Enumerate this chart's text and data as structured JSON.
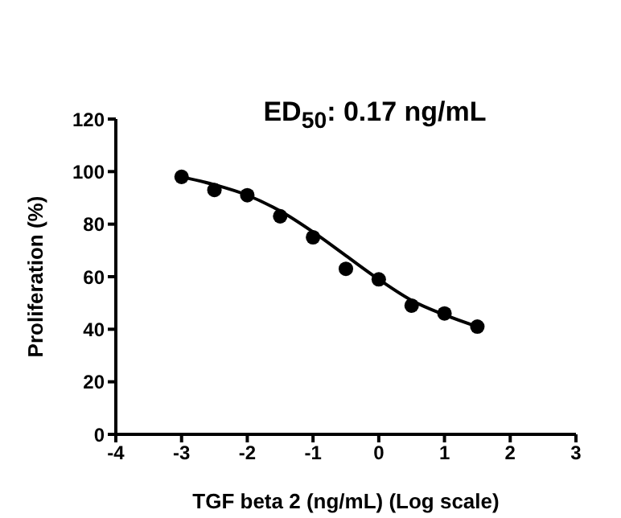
{
  "chart_data": {
    "type": "scatter",
    "title": "ED$_{50}$: 0.17 ng/mL",
    "xlabel": "TGF beta 2 (ng/mL) (Log scale)",
    "ylabel": "Proliferation (%)",
    "xlim": [
      -4,
      3
    ],
    "xticks": [
      -4,
      -3,
      -2,
      -1,
      0,
      1,
      2,
      3
    ],
    "ylim": [
      0,
      120
    ],
    "yticks": [
      0,
      20,
      40,
      60,
      80,
      100,
      120
    ],
    "series": [
      {
        "color": "#000000",
        "marker": "circle",
        "x": [
          -3,
          -2.5,
          -2,
          -1.5,
          -1,
          -0.5,
          0,
          0.5,
          1,
          1.5
        ],
        "values": [
          98,
          93,
          91,
          83,
          75,
          63,
          59,
          49,
          46,
          41
        ]
      },
      {
        "type": "line",
        "color": "#000000",
        "marker": "none",
        "line_style": "solid",
        "x": [
          -3,
          -2.5,
          -2,
          -1.5,
          -1,
          -0.5,
          0,
          0.5,
          1,
          1.5
        ],
        "values": [
          98,
          95,
          91,
          85,
          77,
          68,
          59,
          51,
          45.5,
          41
        ]
      }
    ]
  }
}
